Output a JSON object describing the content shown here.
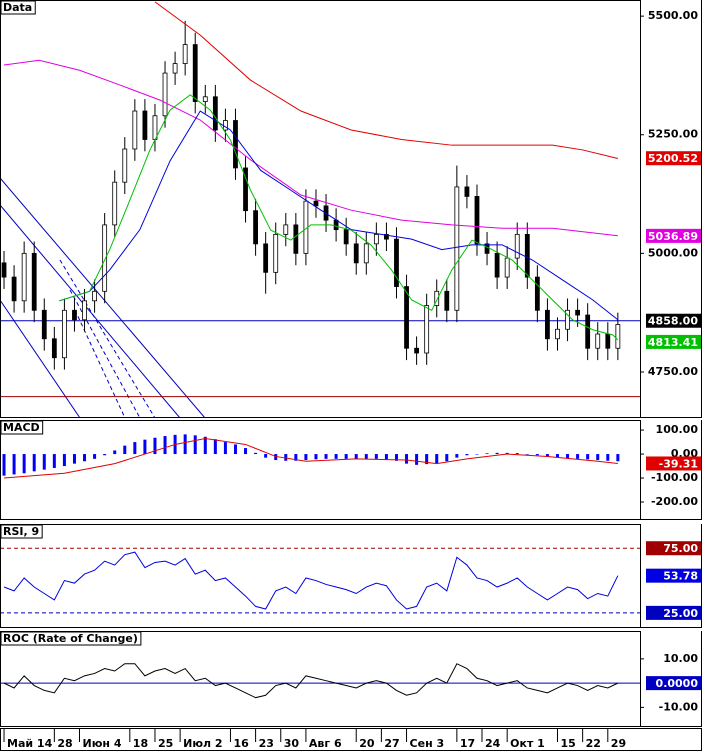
{
  "chart_data": [
    {
      "type": "candlestick",
      "title": "Data",
      "x": [
        0,
        2,
        4,
        6,
        8,
        10,
        12,
        14,
        16,
        18,
        20,
        22,
        24,
        26,
        28,
        30,
        32,
        34,
        36,
        38,
        40,
        42,
        44,
        46,
        48,
        50,
        52,
        54,
        56,
        58,
        60,
        62,
        64,
        66,
        68,
        70,
        72,
        74,
        76,
        78,
        80,
        82,
        84,
        86,
        88,
        90,
        92,
        94,
        96,
        98,
        100,
        102,
        104,
        106,
        108,
        110,
        112,
        114,
        116,
        118,
        120,
        122
      ],
      "open": [
        4980,
        4950,
        4900,
        5000,
        4880,
        4820,
        4780,
        4880,
        4860,
        4900,
        4920,
        5060,
        5150,
        5220,
        5300,
        5240,
        5290,
        5380,
        5400,
        5440,
        5320,
        5330,
        5260,
        5280,
        5180,
        5090,
        5020,
        4960,
        5040,
        5060,
        5000,
        5110,
        5100,
        5070,
        5050,
        5020,
        4980,
        5020,
        5040,
        5030,
        4930,
        4800,
        4790,
        4890,
        4920,
        4880,
        5140,
        5120,
        5020,
        5000,
        4950,
        4990,
        5040,
        4950,
        4880,
        4820,
        4840,
        4880,
        4870,
        4800,
        4830,
        4800
      ],
      "high": [
        5005,
        4975,
        5025,
        5025,
        4905,
        4845,
        4905,
        4905,
        4925,
        4945,
        5085,
        5175,
        5245,
        5325,
        5325,
        5315,
        5405,
        5425,
        5490,
        5465,
        5355,
        5355,
        5305,
        5305,
        5205,
        5115,
        5045,
        5065,
        5085,
        5085,
        5135,
        5135,
        5125,
        5095,
        5075,
        5045,
        5045,
        5065,
        5065,
        5055,
        4955,
        4825,
        4915,
        4945,
        4945,
        5185,
        5165,
        5145,
        5045,
        5025,
        5015,
        5065,
        5065,
        4975,
        4905,
        4865,
        4905,
        4905,
        4895,
        4855,
        4855,
        4875
      ],
      "low": [
        4925,
        4875,
        4875,
        4855,
        4795,
        4755,
        4755,
        4835,
        4835,
        4875,
        4895,
        5035,
        5125,
        5195,
        5215,
        5215,
        5265,
        5355,
        5375,
        5295,
        5295,
        5235,
        5235,
        5155,
        5065,
        4995,
        4915,
        4935,
        5015,
        4975,
        4975,
        5075,
        5045,
        5025,
        4995,
        4955,
        4955,
        4995,
        5005,
        4905,
        4775,
        4765,
        4765,
        4865,
        4855,
        4855,
        5095,
        4995,
        4975,
        4925,
        4925,
        4965,
        4925,
        4855,
        4795,
        4795,
        4815,
        4845,
        4775,
        4775,
        4775,
        4775
      ],
      "close": [
        4950,
        4900,
        5000,
        4880,
        4820,
        4780,
        4880,
        4860,
        4900,
        4920,
        5060,
        5150,
        5220,
        5300,
        5240,
        5290,
        5380,
        5400,
        5440,
        5320,
        5330,
        5260,
        5280,
        5180,
        5090,
        5020,
        4960,
        5040,
        5060,
        5000,
        5110,
        5100,
        5070,
        5050,
        5020,
        4980,
        5020,
        5040,
        5030,
        4930,
        4800,
        4790,
        4890,
        4920,
        4880,
        5140,
        5120,
        5020,
        5000,
        4950,
        4990,
        5040,
        4950,
        4880,
        4820,
        4840,
        4880,
        4870,
        4800,
        4830,
        4800,
        4850
      ],
      "xlim": [
        -0.8,
        126.4
      ],
      "xticks": [
        {
          "value": 0,
          "label": "Май 14"
        },
        {
          "value": 10,
          "label": "28"
        },
        {
          "value": 15,
          "label": "Июн 4"
        },
        {
          "value": 25,
          "label": "18"
        },
        {
          "value": 30,
          "label": "25"
        },
        {
          "value": 35,
          "label": "Июл 2"
        },
        {
          "value": 45,
          "label": "16"
        },
        {
          "value": 50,
          "label": "23"
        },
        {
          "value": 55,
          "label": "30"
        },
        {
          "value": 60,
          "label": "Авг 6"
        },
        {
          "value": 70,
          "label": "20"
        },
        {
          "value": 75,
          "label": "27"
        },
        {
          "value": 80,
          "label": "Сен 3"
        },
        {
          "value": 90,
          "label": "17"
        },
        {
          "value": 95,
          "label": "24"
        },
        {
          "value": 100,
          "label": "Окт 1"
        },
        {
          "value": 110,
          "label": "15"
        },
        {
          "value": 115,
          "label": "22"
        },
        {
          "value": 120,
          "label": "29"
        }
      ],
      "ylim": [
        4653,
        5534
      ],
      "yticks": [
        {
          "value": 5500,
          "label": "5500.00"
        },
        {
          "value": 5250,
          "label": "5250.00"
        },
        {
          "value": 5000,
          "label": "5000.00"
        },
        {
          "value": 4750,
          "label": "4750.00"
        }
      ],
      "lines": [
        {
          "color": "#e00000",
          "x": [
            30,
            39,
            49,
            59,
            69,
            79,
            89,
            99,
            109,
            115,
            122
          ],
          "values": [
            5530,
            5460,
            5365,
            5300,
            5260,
            5240,
            5228,
            5228,
            5228,
            5218,
            5200
          ]
        },
        {
          "color": "#e000e0",
          "x": [
            0,
            7,
            15,
            23,
            31,
            39,
            49,
            59,
            69,
            79,
            89,
            99,
            109,
            122
          ],
          "values": [
            5397,
            5407,
            5386,
            5355,
            5323,
            5281,
            5197,
            5123,
            5091,
            5070,
            5060,
            5053,
            5053,
            5037
          ]
        },
        {
          "color": "#0000e0",
          "x": [
            11,
            17,
            21,
            27,
            33,
            39,
            45,
            51,
            57,
            63,
            69,
            75,
            81,
            87,
            93,
            99,
            105,
            111,
            117,
            122
          ],
          "values": [
            4900,
            4920,
            4965,
            5050,
            5195,
            5300,
            5260,
            5175,
            5133,
            5091,
            5050,
            5040,
            5030,
            5008,
            5018,
            5018,
            4986,
            4944,
            4902,
            4860
          ]
        },
        {
          "color": "#00c000",
          "x": [
            11,
            17,
            21,
            25,
            29,
            33,
            37,
            41,
            45,
            49,
            53,
            57,
            61,
            65,
            69,
            73,
            77,
            81,
            85,
            89,
            93,
            97,
            101,
            105,
            109,
            113,
            117,
            121,
            122
          ],
          "values": [
            4900,
            4920,
            5008,
            5112,
            5218,
            5302,
            5334,
            5302,
            5239,
            5133,
            5049,
            5028,
            5060,
            5060,
            5049,
            5017,
            4965,
            4902,
            4880,
            4965,
            5028,
            5008,
            4986,
            4944,
            4902,
            4860,
            4839,
            4828,
            4818
          ]
        }
      ],
      "levels": [
        {
          "value": 4858,
          "label": "4858.00",
          "color": "#0000c0",
          "tag_color": "#000000"
        },
        {
          "value": 4698,
          "color": "#a00000"
        }
      ],
      "tags": [
        {
          "value": 5200.52,
          "color": "#e00000"
        },
        {
          "value": 5036.89,
          "color": "#e000e0"
        },
        {
          "value": 4813.41,
          "color": "#00c000"
        }
      ]
    },
    {
      "type": "bar",
      "title": "MACD",
      "color": "#0000ff",
      "values": [
        -90,
        -85,
        -80,
        -72,
        -65,
        -58,
        -50,
        -40,
        -30,
        -20,
        -5,
        15,
        35,
        50,
        60,
        68,
        75,
        80,
        82,
        78,
        72,
        62,
        50,
        40,
        25,
        5,
        -15,
        -25,
        -28,
        -28,
        -25,
        -22,
        -20,
        -20,
        -20,
        -20,
        -20,
        -20,
        -22,
        -28,
        -40,
        -45,
        -42,
        -38,
        -30,
        -15,
        -5,
        0,
        3,
        5,
        5,
        4,
        0,
        -5,
        -10,
        -15,
        -18,
        -20,
        -22,
        -25,
        -28,
        -30
      ],
      "ylim": [
        -275,
        142
      ],
      "yticks": [
        {
          "value": 100,
          "label": "100.00"
        },
        {
          "value": 0,
          "label": "0.00"
        },
        {
          "value": -100,
          "label": "-100.00"
        },
        {
          "value": -200,
          "label": "-200.00"
        }
      ],
      "lines": [
        {
          "color": "#e00000",
          "x": [
            0,
            12,
            22,
            34,
            40,
            48,
            54,
            60,
            70,
            80,
            86,
            92,
            100,
            108,
            118,
            122
          ],
          "values": [
            -100,
            -80,
            -40,
            40,
            65,
            40,
            -10,
            -30,
            -20,
            -25,
            -40,
            -20,
            0,
            -10,
            -30,
            -39.31
          ]
        }
      ],
      "tags": [
        {
          "value": -39.31,
          "color": "#e00000"
        }
      ]
    },
    {
      "type": "line",
      "title": "RSI, 9",
      "color": "#0000e0",
      "values": [
        45,
        42,
        52,
        45,
        40,
        35,
        50,
        48,
        55,
        58,
        65,
        62,
        70,
        72,
        60,
        64,
        65,
        62,
        67,
        55,
        58,
        50,
        52,
        45,
        38,
        30,
        28,
        42,
        45,
        40,
        52,
        50,
        47,
        45,
        43,
        40,
        45,
        48,
        46,
        35,
        28,
        30,
        45,
        48,
        42,
        68,
        62,
        52,
        50,
        45,
        48,
        52,
        45,
        40,
        35,
        40,
        45,
        43,
        36,
        40,
        38,
        53.78
      ],
      "ylim": [
        13.3,
        93.75
      ],
      "levels": [
        {
          "value": 75,
          "label": "75.00",
          "color": "#a00000",
          "dashed": true
        },
        {
          "value": 25,
          "label": "25.00",
          "color": "#0000c0",
          "dashed": true
        }
      ],
      "tags": [
        {
          "value": 53.78,
          "color": "#0000e0"
        }
      ]
    },
    {
      "type": "line",
      "title": "ROC (Rate of Change)",
      "color": "#000000",
      "values": [
        0,
        -2,
        3,
        -1,
        -3,
        -4,
        2,
        1,
        3,
        4,
        6,
        5,
        8,
        8,
        3,
        5,
        6,
        4,
        6,
        1,
        2,
        -1,
        0,
        -2,
        -4,
        -6,
        -5,
        -1,
        0,
        -2,
        3,
        2,
        1,
        0,
        -1,
        -2,
        0,
        1,
        0,
        -3,
        -5,
        -4,
        0,
        2,
        0,
        8,
        6,
        2,
        1,
        -1,
        0,
        1,
        -2,
        -3,
        -4,
        -2,
        0,
        -1,
        -3,
        -1,
        -2,
        0
      ],
      "ylim": [
        -18.1,
        21.5
      ],
      "yticks": [
        {
          "value": 10,
          "label": "10.00"
        },
        {
          "value": -10,
          "label": "-10.00"
        }
      ],
      "levels": [
        {
          "value": 0,
          "label": "0.0000",
          "color": "#0000c0"
        }
      ]
    }
  ]
}
